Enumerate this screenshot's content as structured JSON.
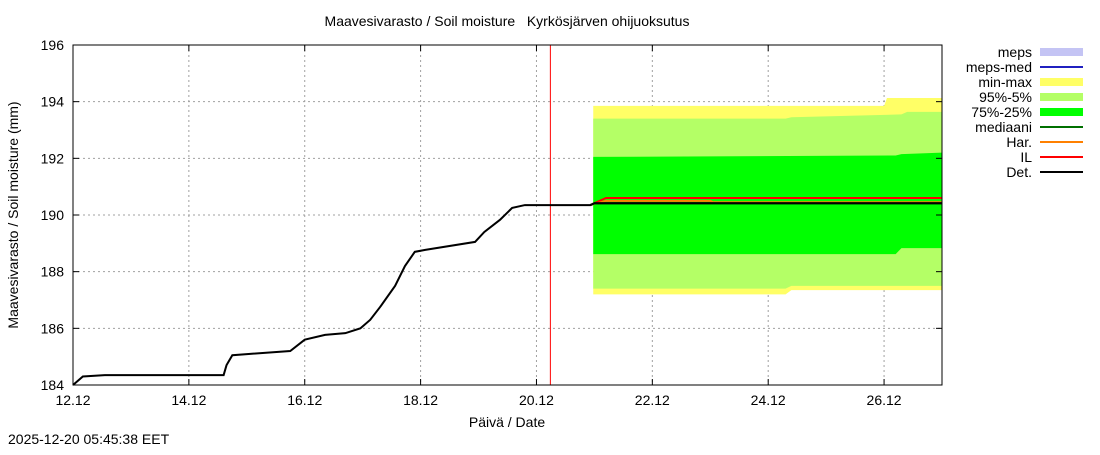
{
  "chart_data": {
    "type": "line",
    "title": "Maavesivarasto / Soil moisture   Kyrkösjärven ohijuoksutus",
    "xlabel": "Päivä / Date",
    "ylabel": "Maavesivarasto / Soil moisture (mm)",
    "xlim": [
      12,
      27
    ],
    "ylim": [
      184,
      196
    ],
    "x_ticks": [
      12,
      14,
      16,
      18,
      20,
      22,
      24,
      26
    ],
    "x_tick_labels": [
      "12.12",
      "14.12",
      "16.12",
      "18.12",
      "20.12",
      "22.12",
      "24.12",
      "26.12"
    ],
    "y_ticks": [
      184,
      186,
      188,
      190,
      192,
      194,
      196
    ],
    "y_tick_labels": [
      "184",
      "186",
      "188",
      "190",
      "192",
      "194",
      "196"
    ],
    "grid": true,
    "legend_placement": "right",
    "legend": [
      {
        "label": "meps",
        "color": "#c4c4f4",
        "kind": "band"
      },
      {
        "label": "meps-med",
        "color": "#2020c0",
        "kind": "line"
      },
      {
        "label": "min-max",
        "color": "#ffff66",
        "kind": "band"
      },
      {
        "label": "95%-5%",
        "color": "#b4ff66",
        "kind": "band"
      },
      {
        "label": "75%-25%",
        "color": "#00ff00",
        "kind": "band"
      },
      {
        "label": "mediaani",
        "color": "#007000",
        "kind": "line"
      },
      {
        "label": "Har.",
        "color": "#ff8000",
        "kind": "line"
      },
      {
        "label": "IL",
        "color": "#ff0000",
        "kind": "line"
      },
      {
        "label": "Det.",
        "color": "#000000",
        "kind": "line"
      }
    ],
    "current_time_x": 20.24,
    "current_time_color": "#ff0000",
    "bands": {
      "min-max": [
        [
          20.98,
          187.2,
          193.85
        ],
        [
          24.3,
          187.2,
          193.85
        ],
        [
          24.4,
          187.35,
          193.85
        ],
        [
          26.0,
          187.35,
          193.85
        ],
        [
          26.05,
          187.35,
          194.13
        ],
        [
          27.0,
          187.35,
          194.13
        ]
      ],
      "95%-5%": [
        [
          20.98,
          187.4,
          193.4
        ],
        [
          24.3,
          187.4,
          193.4
        ],
        [
          24.4,
          187.5,
          193.45
        ],
        [
          26.3,
          187.5,
          193.55
        ],
        [
          26.4,
          187.5,
          193.64
        ],
        [
          27.0,
          187.5,
          193.64
        ]
      ],
      "75%-25%": [
        [
          20.98,
          188.62,
          192.05
        ],
        [
          26.2,
          188.62,
          192.1
        ],
        [
          26.3,
          188.83,
          192.15
        ],
        [
          27.0,
          188.83,
          192.2
        ]
      ]
    },
    "series": [
      {
        "name": "Det.",
        "color": "#000000",
        "x": [
          12.0,
          12.17,
          12.55,
          14.6,
          14.65,
          14.75,
          15.06,
          15.75,
          16.0,
          16.35,
          16.7,
          16.96,
          17.13,
          17.3,
          17.56,
          17.73,
          17.9,
          18.08,
          18.94,
          19.1,
          19.37,
          19.58,
          19.8,
          20.93,
          21.0,
          27.0
        ],
        "y": [
          184.0,
          184.3,
          184.35,
          184.35,
          184.7,
          185.05,
          185.1,
          185.2,
          185.6,
          185.77,
          185.83,
          186.0,
          186.3,
          186.75,
          187.5,
          188.2,
          188.7,
          188.77,
          189.05,
          189.4,
          189.83,
          190.25,
          190.35,
          190.35,
          190.42,
          190.42
        ]
      },
      {
        "name": "mediaani",
        "color": "#007000",
        "x": [
          20.93,
          21.0,
          27.0
        ],
        "y": [
          190.35,
          190.4,
          190.4
        ]
      },
      {
        "name": "Har.",
        "color": "#ff8000",
        "x": [
          20.93,
          21.2,
          23.0,
          23.05,
          27.0
        ],
        "y": [
          190.35,
          190.5,
          190.5,
          190.45,
          190.45
        ]
      },
      {
        "name": "IL",
        "color": "#ff0000",
        "x": [
          20.93,
          21.2,
          27.0
        ],
        "y": [
          190.35,
          190.6,
          190.6
        ]
      }
    ]
  },
  "timestamp": "2025-12-20 05:45:38 EET"
}
